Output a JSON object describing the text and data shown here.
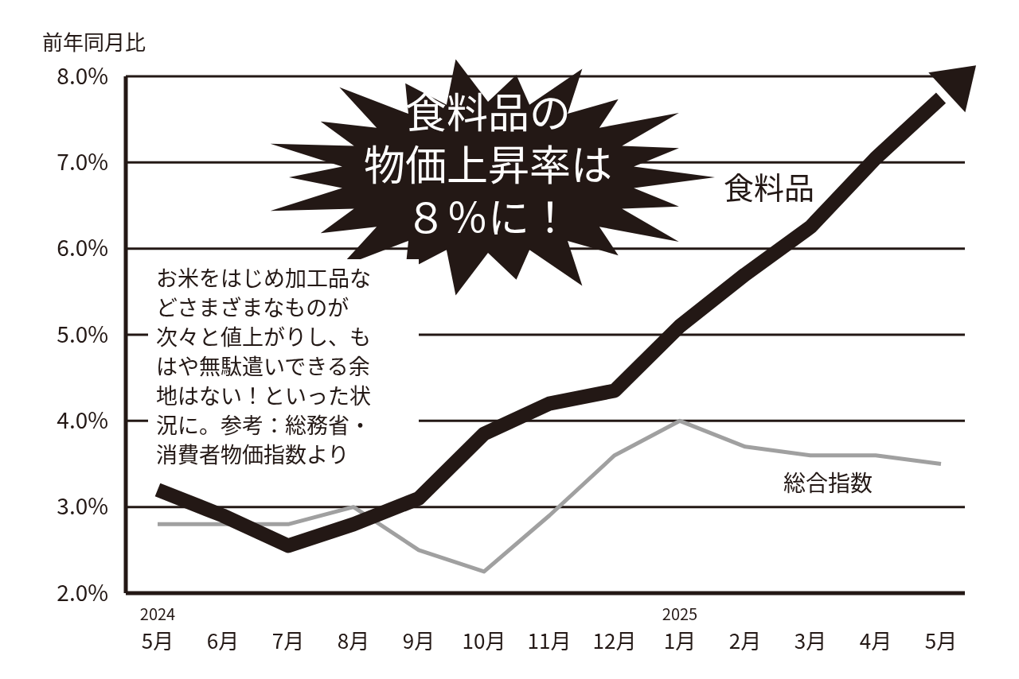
{
  "chart_data": {
    "type": "line",
    "ylabel": "前年同月比",
    "categories": [
      "$^{2024}$5月",
      "6月",
      "7月",
      "8月",
      "9月",
      "10月",
      "11月",
      "12月",
      "$^{2025}$1月",
      "2月",
      "3月",
      "4月",
      "5月"
    ],
    "series": [
      {
        "name": "食料品",
        "color": "#231815",
        "values": [
          3.2,
          2.9,
          2.55,
          2.8,
          3.1,
          3.85,
          4.2,
          4.35,
          5.1,
          5.7,
          6.25,
          7.05,
          7.75
        ]
      },
      {
        "name": "総合指数",
        "color": "#a0a0a0",
        "values": [
          2.8,
          2.8,
          2.8,
          3.0,
          2.5,
          2.25,
          2.9,
          3.6,
          4.0,
          3.7,
          3.6,
          3.6,
          3.5
        ]
      }
    ],
    "ylim": [
      2,
      8
    ],
    "yticks": [
      {
        "value": 2,
        "label": "2.0%"
      },
      {
        "value": 3,
        "label": "3.0%"
      },
      {
        "value": 4,
        "label": "4.0%"
      },
      {
        "value": 5,
        "label": "5.0%"
      },
      {
        "value": 6,
        "label": "6.0%"
      },
      {
        "value": 7,
        "label": "7.0%"
      },
      {
        "value": 8,
        "label": "8.0%"
      }
    ],
    "grid": "y",
    "line_style": "solid",
    "annotations": [
      "食料品の物価上昇率は８％に！",
      "お米をはじめ加工品などさまざまなものが次々と値上がりし、もはや無駄遣いできる余地はない！といった状況に。参考：総務省・消費者物価指数より"
    ]
  }
}
